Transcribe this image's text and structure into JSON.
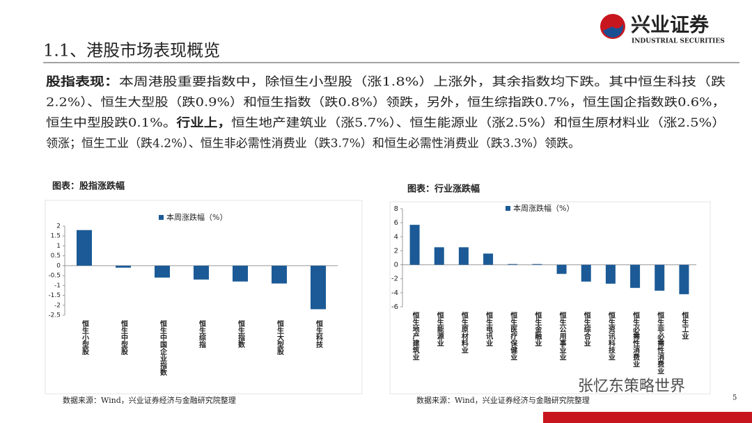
{
  "logo": {
    "name": "兴业证券",
    "english": "INDUSTRIAL SECURITIES"
  },
  "title": "1.1、港股市场表现概览",
  "paragraph": [
    [
      {
        "text": "股指表现：",
        "bold": true
      },
      {
        "text": "本周港股重要指数中，除恒生小型股（涨1.8%）上涨外，其余指数均下跌。其中恒生科技（跌"
      }
    ],
    [
      {
        "text": "2.2%）、恒生大型股（跌0.9%）和恒生指数（跌0.8%）领跌，另外，恒生综指跌0.7%，恒生国企指数跌0.6%，"
      }
    ],
    [
      {
        "text": "恒生中型股跌0.1%。"
      },
      {
        "text": "行业上，",
        "bold": true
      },
      {
        "text": "恒生地产建筑业（涨5.7%）、恒生能源业（涨2.5%）和恒生原材料业（涨2.5%）"
      }
    ],
    [
      {
        "text": "领涨；恒生工业（跌4.2%）、恒生非必需性消费业（跌3.7%）和恒生必需性消费业（跌3.3%）领跌。"
      }
    ]
  ],
  "chart_data": [
    {
      "type": "bar",
      "title": "图表：股指涨跌幅",
      "categories": [
        "恒生小型股",
        "恒生中型股",
        "恒生中国企业指数",
        "恒生综指",
        "恒生指数",
        "恒生大型股",
        "恒生科技"
      ],
      "series": [
        {
          "name": "本周涨跌幅（%）",
          "color": "#1b5a96",
          "values": [
            1.8,
            -0.1,
            -0.6,
            -0.7,
            -0.8,
            -0.9,
            -2.2
          ]
        }
      ],
      "ylim": [
        -2.5,
        2
      ],
      "yticks": [
        -2.5,
        -2,
        -1.5,
        -1,
        -0.5,
        0,
        0.5,
        1,
        1.5,
        2
      ]
    },
    {
      "type": "bar",
      "title": "图表：行业涨跌幅",
      "categories": [
        "恒生地产建筑业",
        "恒生能源业",
        "恒生原材料业",
        "恒生电讯业",
        "恒生医疗保健业",
        "恒生金融业",
        "恒生公用事业业",
        "恒生综合业",
        "恒生资讯科技业",
        "恒生必需性消费业",
        "恒生非必需性消费业",
        "恒生工业"
      ],
      "series": [
        {
          "name": "本周涨跌幅（%）",
          "color": "#1b5a96",
          "values": [
            5.7,
            2.5,
            2.5,
            1.6,
            0.1,
            0.1,
            -1.3,
            -2.4,
            -2.7,
            -3.3,
            -3.7,
            -4.2
          ]
        }
      ],
      "ylim": [
        -6,
        8
      ],
      "yticks": [
        -6,
        -4,
        -2,
        0,
        2,
        4,
        6,
        8
      ]
    }
  ],
  "sources": [
    "数据来源：Wind，兴业证券经济与金融研究院整理",
    "数据来源：Wind，兴业证券经济与金融研究院整理"
  ],
  "watermark": "张忆东策略世界",
  "page_number": "5"
}
